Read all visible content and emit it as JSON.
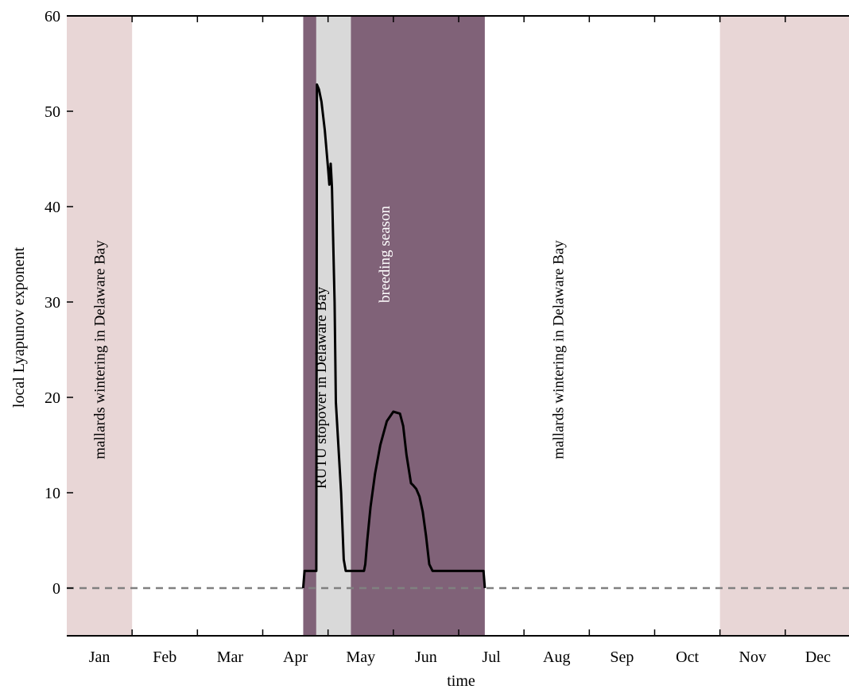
{
  "chart_data": {
    "type": "line",
    "xlabel": "time",
    "ylabel": "local Lyapunov exponent",
    "xlim": [
      0,
      12
    ],
    "ylim": [
      -5,
      60
    ],
    "grid": false,
    "x_tick_labels": [
      "Jan",
      "Feb",
      "Mar",
      "Apr",
      "May",
      "Jun",
      "Jul",
      "Aug",
      "Sep",
      "Oct",
      "Nov",
      "Dec"
    ],
    "y_ticks": [
      0,
      10,
      20,
      30,
      40,
      50,
      60
    ],
    "bands": [
      {
        "x0": 0.0,
        "x1": 1.0,
        "color": "#e8d6d6"
      },
      {
        "x0": 10.0,
        "x1": 12.0,
        "color": "#e8d6d6"
      },
      {
        "x0": 3.62,
        "x1": 3.82,
        "color": "#806278"
      },
      {
        "x0": 3.82,
        "x1": 4.35,
        "color": "#d9d9d9"
      },
      {
        "x0": 4.35,
        "x1": 6.4,
        "color": "#806278"
      }
    ],
    "band_labels": [
      {
        "text": "mallards wintering in Delaware Bay",
        "x": 0.58,
        "y": 25,
        "color": "#000000"
      },
      {
        "text": "RUTU stopover in Delaware Bay",
        "x": 3.97,
        "y": 21,
        "color": "#000000"
      },
      {
        "text": "breeding season",
        "x": 4.94,
        "y": 35,
        "color": "#ffffff"
      },
      {
        "text": "mallards wintering in Delaware Bay",
        "x": 7.6,
        "y": 25,
        "color": "#000000"
      }
    ],
    "zero_line": {
      "y": 0,
      "style": "dashed",
      "color": "#808080"
    },
    "series": [
      {
        "color": "#000000",
        "x": [
          3.62,
          3.64,
          3.82,
          3.83,
          3.86,
          3.9,
          3.95,
          4.0,
          4.02,
          4.04,
          4.06,
          4.1,
          4.12,
          4.2,
          4.24,
          4.27,
          4.3,
          4.4,
          4.45,
          4.5,
          4.55,
          4.57,
          4.6,
          4.65,
          4.72,
          4.8,
          4.9,
          5.0,
          5.1,
          5.15,
          5.2,
          5.27,
          5.3,
          5.35,
          5.4,
          5.45,
          5.5,
          5.55,
          5.6,
          5.7,
          5.8,
          5.9,
          6.0,
          6.1,
          6.2,
          6.38,
          6.4
        ],
        "y": [
          0,
          1.8,
          1.8,
          52.8,
          52.3,
          51.0,
          48.0,
          44.0,
          42.3,
          44.5,
          42.0,
          30.0,
          19.5,
          10.0,
          3.0,
          1.8,
          1.8,
          1.8,
          1.8,
          1.8,
          1.8,
          2.5,
          5.0,
          8.5,
          12.0,
          15.0,
          17.5,
          18.5,
          18.3,
          17.0,
          14.0,
          11.0,
          10.8,
          10.4,
          9.6,
          8.0,
          5.5,
          2.5,
          1.8,
          1.8,
          1.8,
          1.8,
          1.8,
          1.8,
          1.8,
          1.8,
          0
        ]
      }
    ]
  }
}
